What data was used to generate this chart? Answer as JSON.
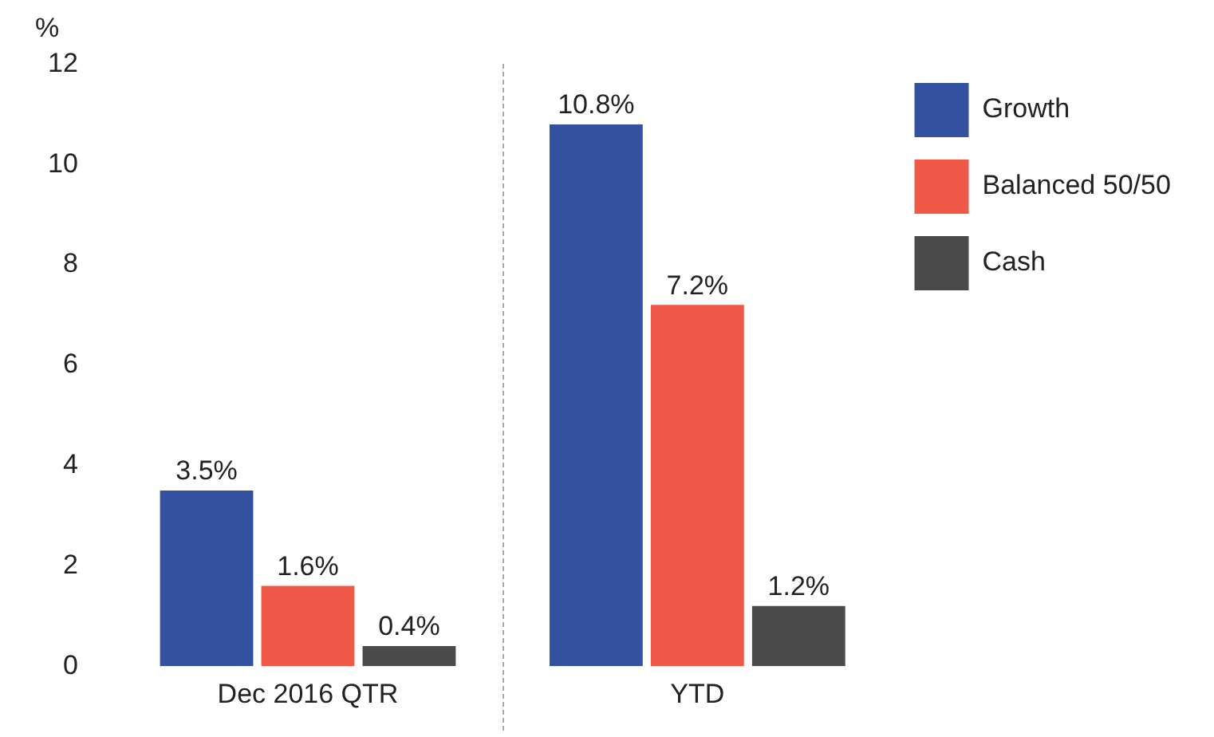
{
  "chart_data": {
    "type": "bar",
    "ylabel": "%",
    "categories": [
      "Dec 2016 QTR",
      "YTD"
    ],
    "series": [
      {
        "name": "Growth",
        "color": "#34519f",
        "values": [
          3.5,
          10.8
        ],
        "value_labels": [
          "3.5%",
          "10.8%"
        ]
      },
      {
        "name": "Balanced 50/50",
        "color": "#f05848",
        "values": [
          1.6,
          7.2
        ],
        "value_labels": [
          "1.6%",
          "7.2%"
        ]
      },
      {
        "name": "Cash",
        "color": "#4a4a4a",
        "values": [
          0.4,
          1.2
        ],
        "value_labels": [
          "0.4%",
          "1.2%"
        ]
      }
    ],
    "ylim": [
      0,
      12
    ],
    "yticks": [
      0,
      2,
      4,
      6,
      8,
      10,
      12
    ],
    "grid": false,
    "legend": "right"
  }
}
